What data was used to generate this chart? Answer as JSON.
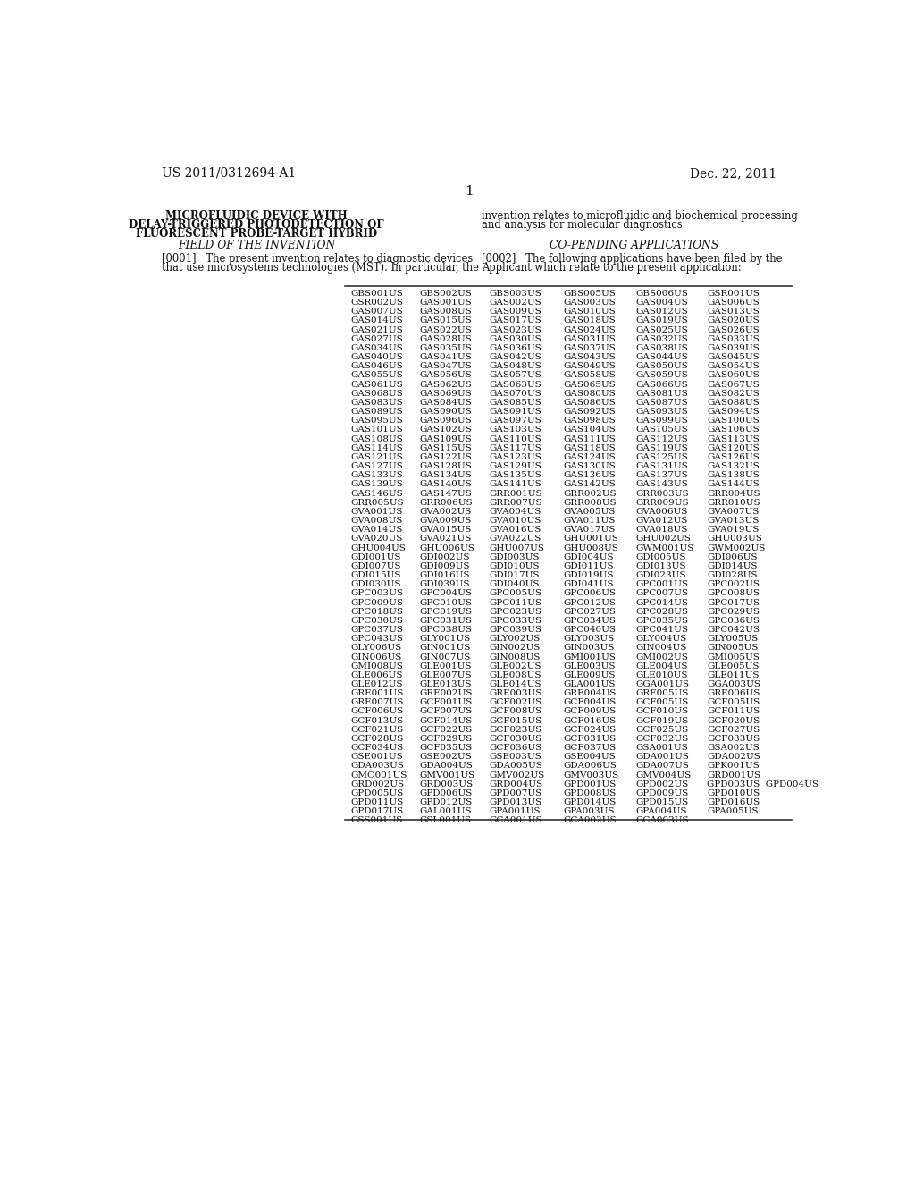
{
  "background_color": "#ffffff",
  "header_left": "US 2011/0312694 A1",
  "header_right": "Dec. 22, 2011",
  "page_number": "1",
  "title_bold_lines": [
    "MICROFLUIDIC DEVICE WITH",
    "DELAY-TRIGGERED PHOTODETECTION OF",
    "FLUORESCENT PROBE-TARGET HYBRID"
  ],
  "section1_header": "FIELD OF THE INVENTION",
  "section1_para_lines": [
    "[0001]   The present invention relates to diagnostic devices",
    "that use microsystems technologies (MST). In particular, the"
  ],
  "section1_para_right_lines": [
    "invention relates to microfluidic and biochemical processing",
    "and analysis for molecular diagnostics."
  ],
  "section2_header": "CO-PENDING APPLICATIONS",
  "section2_para_lines": [
    "[0002]   The following applications have been filed by the",
    "Applicant which relate to the present application:"
  ],
  "table_cols": [
    [
      "GBS001US",
      "GSR002US",
      "GAS007US",
      "GAS014US",
      "GAS021US",
      "GAS027US",
      "GAS034US",
      "GAS040US",
      "GAS046US",
      "GAS055US",
      "GAS061US",
      "GAS068US",
      "GAS083US",
      "GAS089US",
      "GAS095US",
      "GAS101US",
      "GAS108US",
      "GAS114US",
      "GAS121US",
      "GAS127US",
      "GAS133US",
      "GAS139US",
      "GAS146US",
      "GRR005US",
      "GVA001US",
      "GVA008US",
      "GVA014US",
      "GVA020US",
      "GHU004US",
      "GDI001US",
      "GDI007US",
      "GDI015US",
      "GDI030US",
      "GPC003US",
      "GPC009US",
      "GPC018US",
      "GPC030US",
      "GPC037US",
      "GPC043US",
      "GLY006US",
      "GIN006US",
      "GMI008US",
      "GLE006US",
      "GLE012US",
      "GRE001US",
      "GRE007US",
      "GCF006US",
      "GCF013US",
      "GCF021US",
      "GCF028US",
      "GCF034US",
      "GSE001US",
      "GDA003US",
      "GMO001US",
      "GRD002US",
      "GPD005US",
      "GPD011US",
      "GPD017US",
      "GSS001US"
    ],
    [
      "GBS002US",
      "GAS001US",
      "GAS008US",
      "GAS015US",
      "GAS022US",
      "GAS028US",
      "GAS035US",
      "GAS041US",
      "GAS047US",
      "GAS056US",
      "GAS062US",
      "GAS069US",
      "GAS084US",
      "GAS090US",
      "GAS096US",
      "GAS102US",
      "GAS109US",
      "GAS115US",
      "GAS122US",
      "GAS128US",
      "GAS134US",
      "GAS140US",
      "GAS147US",
      "GRR006US",
      "GVA002US",
      "GVA009US",
      "GVA015US",
      "GVA021US",
      "GHU006US",
      "GDI002US",
      "GDI009US",
      "GDI016US",
      "GDI039US",
      "GPC004US",
      "GPC010US",
      "GPC019US",
      "GPC031US",
      "GPC038US",
      "GLY001US",
      "GIN001US",
      "GIN007US",
      "GLE001US",
      "GLE007US",
      "GLE013US",
      "GRE002US",
      "GCF001US",
      "GCF007US",
      "GCF014US",
      "GCF022US",
      "GCF029US",
      "GCF035US",
      "GSE002US",
      "GDA004US",
      "GMV001US",
      "GRD003US",
      "GPD006US",
      "GPD012US",
      "GAL001US",
      "GSL001US"
    ],
    [
      "GBS003US",
      "GAS002US",
      "GAS009US",
      "GAS017US",
      "GAS023US",
      "GAS030US",
      "GAS036US",
      "GAS042US",
      "GAS048US",
      "GAS057US",
      "GAS063US",
      "GAS070US",
      "GAS085US",
      "GAS091US",
      "GAS097US",
      "GAS103US",
      "GAS110US",
      "GAS117US",
      "GAS123US",
      "GAS129US",
      "GAS135US",
      "GAS141US",
      "GRR001US",
      "GRR007US",
      "GVA004US",
      "GVA010US",
      "GVA016US",
      "GVA022US",
      "GHU007US",
      "GDI003US",
      "GDI010US",
      "GDI017US",
      "GDI040US",
      "GPC005US",
      "GPC011US",
      "GPC023US",
      "GPC033US",
      "GPC039US",
      "GLY002US",
      "GIN002US",
      "GIN008US",
      "GLE002US",
      "GLE008US",
      "GLE014US",
      "GRE003US",
      "GCF002US",
      "GCF008US",
      "GCF015US",
      "GCF023US",
      "GCF030US",
      "GCF036US",
      "GSE003US",
      "GDA005US",
      "GMV002US",
      "GRD004US",
      "GPD007US",
      "GPD013US",
      "GPA001US",
      "GCA001US"
    ],
    [
      "GBS005US",
      "GAS003US",
      "GAS010US",
      "GAS018US",
      "GAS024US",
      "GAS031US",
      "GAS037US",
      "GAS043US",
      "GAS049US",
      "GAS058US",
      "GAS065US",
      "GAS080US",
      "GAS086US",
      "GAS092US",
      "GAS098US",
      "GAS104US",
      "GAS111US",
      "GAS118US",
      "GAS124US",
      "GAS130US",
      "GAS136US",
      "GAS142US",
      "GRR002US",
      "GRR008US",
      "GVA005US",
      "GVA011US",
      "GVA017US",
      "GHU001US",
      "GHU008US",
      "GDI004US",
      "GDI011US",
      "GDI019US",
      "GDI041US",
      "GPC006US",
      "GPC012US",
      "GPC027US",
      "GPC034US",
      "GPC040US",
      "GLY003US",
      "GIN003US",
      "GMI001US",
      "GLE003US",
      "GLE009US",
      "GLA001US",
      "GRE004US",
      "GCF004US",
      "GCF009US",
      "GCF016US",
      "GCF024US",
      "GCF031US",
      "GCF037US",
      "GSE004US",
      "GDA006US",
      "GMV003US",
      "GPD001US",
      "GPD008US",
      "GPD014US",
      "GPA003US",
      "GCA002US"
    ],
    [
      "GBS006US",
      "GAS004US",
      "GAS012US",
      "GAS019US",
      "GAS025US",
      "GAS032US",
      "GAS038US",
      "GAS044US",
      "GAS050US",
      "GAS059US",
      "GAS066US",
      "GAS081US",
      "GAS087US",
      "GAS093US",
      "GAS099US",
      "GAS105US",
      "GAS112US",
      "GAS119US",
      "GAS125US",
      "GAS131US",
      "GAS137US",
      "GAS143US",
      "GRR003US",
      "GRR009US",
      "GVA006US",
      "GVA012US",
      "GVA018US",
      "GHU002US",
      "GWM001US",
      "GDI005US",
      "GDI013US",
      "GDI023US",
      "GPC001US",
      "GPC007US",
      "GPC014US",
      "GPC028US",
      "GPC035US",
      "GPC041US",
      "GLY004US",
      "GIN004US",
      "GMI002US",
      "GLE004US",
      "GLE010US",
      "GGA001US",
      "GRE005US",
      "GCF005US",
      "GCF010US",
      "GCF019US",
      "GCF025US",
      "GCF032US",
      "GSA001US",
      "GDA001US",
      "GDA007US",
      "GMV004US",
      "GPD002US",
      "GPD009US",
      "GPD015US",
      "GPA004US",
      "GCA003US"
    ],
    [
      "GSR001US",
      "GAS006US",
      "GAS013US",
      "GAS020US",
      "GAS026US",
      "GAS033US",
      "GAS039US",
      "GAS045US",
      "GAS054US",
      "GAS060US",
      "GAS067US",
      "GAS082US",
      "GAS088US",
      "GAS094US",
      "GAS100US",
      "GAS106US",
      "GAS113US",
      "GAS120US",
      "GAS126US",
      "GAS132US",
      "GAS138US",
      "GAS144US",
      "GRR004US",
      "GRR010US",
      "GVA007US",
      "GVA013US",
      "GVA019US",
      "GHU003US",
      "GWM002US",
      "GDI006US",
      "GDI014US",
      "GDI028US",
      "GPC002US",
      "GPC008US",
      "GPC017US",
      "GPC029US",
      "GPC036US",
      "GPC042US",
      "GLY005US",
      "GIN005US",
      "GMI005US",
      "GLE005US",
      "GLE011US",
      "GGA003US",
      "GRE006US",
      "GCF005US",
      "GCF011US",
      "GCF020US",
      "GCF027US",
      "GCF033US",
      "GSA002US",
      "GDA002US",
      "GPK001US",
      "GRD001US",
      "GPD003US  GPD004US",
      "GPD010US",
      "GPD016US",
      "GPA005US",
      ""
    ]
  ]
}
